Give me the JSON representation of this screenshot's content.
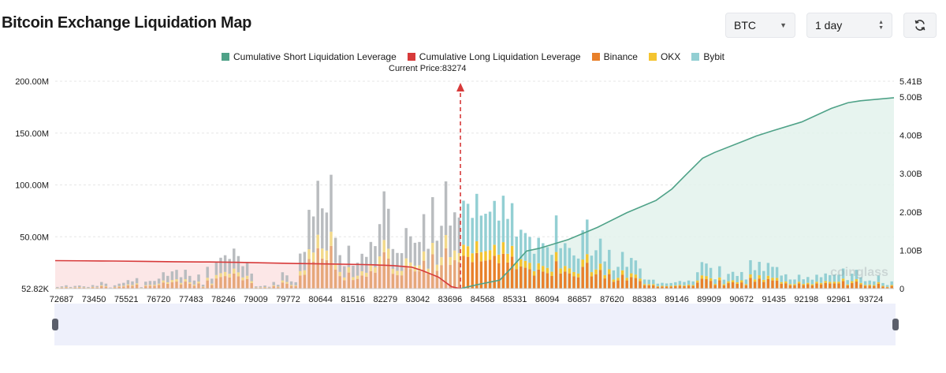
{
  "page": {
    "title": "Bitcoin Exchange Liquidation Map"
  },
  "controls": {
    "coin": "BTC",
    "range": "1 day",
    "refresh_icon": "refresh-icon",
    "coin_caret_icon": "caret-down-icon",
    "range_stepper_icon": "up-down-icon"
  },
  "legend": [
    {
      "label": "Cumulative Short Liquidation Leverage",
      "color": "#4fa288"
    },
    {
      "label": "Cumulative Long Liquidation Leverage",
      "color": "#d73a3a"
    },
    {
      "label": "Binance",
      "color": "#e8802a"
    },
    {
      "label": "OKX",
      "color": "#f4c430"
    },
    {
      "label": "Bybit",
      "color": "#93cfd3"
    }
  ],
  "current_price_label": "Current Price:83274",
  "watermark": "coinglass",
  "chart_data": {
    "type": "bar",
    "title": "",
    "xlabel": "",
    "ylabel": "",
    "x_tick_labels": [
      "72687",
      "73450",
      "75521",
      "76720",
      "77483",
      "78246",
      "79009",
      "79772",
      "80644",
      "81516",
      "82279",
      "83042",
      "83696",
      "84568",
      "85331",
      "86094",
      "86857",
      "87620",
      "88383",
      "89146",
      "89909",
      "90672",
      "91435",
      "92198",
      "92961",
      "93724"
    ],
    "x_range": [
      72687,
      94600
    ],
    "current_price": 83274,
    "left_axis": {
      "ticks": [
        "52.82K",
        "50.00M",
        "100.00M",
        "150.00M",
        "200.00M"
      ],
      "range": [
        0,
        200000000
      ]
    },
    "right_axis": {
      "ticks": [
        "0",
        "1.00B",
        "2.00B",
        "3.00B",
        "4.00B",
        "5.00B",
        "5.41B"
      ],
      "range": [
        0,
        5410000000
      ]
    },
    "series": [
      {
        "name": "Binance",
        "color": "#e8802a",
        "stacked": true,
        "values_millions": [
          0.6,
          0.8,
          1.2,
          0.6,
          1.0,
          1.1,
          0.8,
          0.6,
          1.3,
          1.0,
          2.4,
          1.8,
          0.4,
          1.2,
          1.8,
          2.1,
          3.1,
          2.6,
          3.8,
          0.5,
          2.5,
          2.8,
          2.8,
          3.6,
          5.9,
          4.6,
          6.2,
          6.8,
          4.1,
          6.8,
          4.6,
          2.9,
          5.1,
          1.4,
          7.9,
          3.6,
          9.8,
          11.2,
          12.1,
          10.7,
          14.5,
          11.8,
          8.1,
          9.3,
          5.4,
          0.8,
          0.9,
          1.1,
          0.7,
          2.4,
          1.4,
          5.9,
          4.8,
          2.6,
          2.3,
          12.7,
          13.3,
          28.5,
          26.1,
          39.0,
          29.0,
          27.5,
          41.2,
          18.4,
          12.1,
          8.1,
          15.5,
          8.3,
          9.4,
          12.6,
          11.5,
          16.9,
          15.4,
          23.3,
          35.2,
          28.9,
          14.3,
          12.9,
          12.8,
          21.9,
          18.9,
          16.6,
          16.9,
          26.9,
          14.4,
          33.1,
          17.3,
          22.7,
          38.8,
          22.8,
          27.6,
          25.7,
          31.8,
          30.7,
          25.6,
          34.3,
          26.4,
          27.1,
          27.8,
          31.7,
          24.6,
          33.6,
          25.2,
          30.9,
          18.8,
          21.3,
          20.1,
          18.7,
          12.6,
          18.4,
          16.4,
          15.0,
          12.2,
          26.5,
          14.6,
          16.4,
          14.7,
          12.0,
          10.9,
          21.1,
          25.0,
          11.9,
          13.9,
          18.1,
          9.8,
          14.0,
          6.6,
          7.9,
          13.3,
          7.9,
          11.1,
          10.2,
          7.3,
          3.3,
          3.2,
          3.2,
          1.8,
          2.1,
          1.9,
          2.0,
          2.3,
          2.8,
          2.4,
          2.9,
          2.6,
          5.9,
          9.6,
          9.1,
          7.5,
          3.4,
          8.1,
          3.2,
          5.3,
          6.1,
          4.6,
          6.0,
          3.3,
          10.3,
          6.7,
          9.7,
          6.4,
          9.3,
          7.9,
          7.8,
          4.7,
          5.2,
          3.3,
          3.3,
          5.0,
          3.4,
          4.2,
          3.2,
          5.0,
          4.1,
          5.5,
          4.9,
          5.0,
          5.0,
          7.3,
          3.1,
          5.4,
          6.8,
          4.1,
          2.7,
          2.9,
          2.6,
          4.7,
          2.0,
          1.3,
          2.6
        ]
      },
      {
        "name": "OKX",
        "color": "#f4c430",
        "stacked": true,
        "values_millions": [
          0.2,
          0.3,
          0.4,
          0.2,
          0.3,
          0.4,
          0.3,
          0.2,
          0.4,
          0.3,
          0.8,
          0.6,
          0.1,
          0.4,
          0.6,
          0.7,
          1.0,
          0.9,
          1.3,
          0.2,
          0.8,
          0.9,
          0.9,
          1.2,
          2.0,
          1.5,
          2.1,
          2.3,
          1.4,
          2.3,
          1.5,
          1.0,
          1.7,
          0.5,
          2.6,
          1.2,
          3.3,
          3.7,
          4.0,
          3.6,
          4.8,
          3.9,
          2.7,
          3.1,
          1.8,
          0.3,
          0.3,
          0.4,
          0.2,
          0.8,
          0.5,
          2.0,
          1.6,
          0.9,
          0.8,
          4.2,
          4.4,
          9.5,
          8.7,
          13.0,
          9.7,
          9.2,
          13.7,
          6.1,
          4.0,
          2.7,
          5.2,
          2.8,
          3.1,
          4.2,
          3.8,
          5.6,
          5.1,
          7.8,
          11.7,
          9.6,
          4.8,
          4.3,
          4.3,
          7.3,
          6.3,
          5.5,
          5.6,
          9.0,
          4.8,
          11.0,
          5.8,
          7.6,
          12.9,
          7.6,
          9.2,
          8.6,
          10.6,
          10.2,
          8.5,
          11.4,
          8.8,
          9.0,
          9.3,
          10.6,
          8.2,
          11.2,
          8.4,
          10.3,
          6.3,
          7.1,
          6.7,
          6.2,
          4.2,
          6.1,
          5.5,
          5.0,
          4.1,
          8.8,
          4.9,
          5.5,
          4.9,
          4.0,
          3.6,
          7.0,
          8.3,
          4.0,
          4.6,
          6.0,
          3.3,
          4.7,
          2.2,
          2.6,
          4.4,
          2.6,
          3.7,
          3.4,
          2.4,
          1.1,
          1.1,
          1.1,
          0.6,
          0.7,
          0.6,
          0.7,
          0.8,
          0.9,
          0.8,
          1.0,
          0.9,
          2.0,
          3.2,
          3.0,
          2.5,
          1.1,
          2.7,
          1.1,
          1.8,
          2.0,
          1.5,
          2.0,
          1.1,
          3.4,
          2.2,
          3.2,
          2.1,
          3.1,
          2.6,
          2.6,
          1.6,
          1.7,
          1.1,
          1.1,
          1.7,
          1.1,
          1.4,
          1.1,
          1.7,
          1.4,
          1.8,
          1.6,
          1.7,
          1.7,
          2.4,
          1.0,
          1.8,
          2.3,
          1.4,
          0.9,
          1.0,
          0.9,
          1.6,
          0.7,
          0.4,
          0.9
        ]
      },
      {
        "name": "Bybit",
        "color": "#93cfd3",
        "stacked": true,
        "values_millions": [
          0.8,
          1.1,
          1.6,
          0.8,
          1.3,
          1.5,
          1.1,
          0.8,
          1.7,
          1.3,
          3.2,
          2.4,
          0.6,
          1.6,
          2.4,
          2.8,
          4.1,
          3.5,
          5.0,
          0.7,
          3.4,
          3.7,
          3.7,
          4.8,
          7.9,
          6.2,
          8.3,
          9.0,
          5.5,
          9.1,
          6.2,
          3.9,
          6.8,
          1.9,
          10.5,
          4.8,
          13.0,
          14.9,
          16.1,
          14.3,
          19.3,
          15.7,
          10.8,
          12.4,
          7.3,
          1.1,
          1.2,
          1.5,
          0.9,
          3.2,
          1.8,
          7.9,
          6.4,
          3.5,
          3.1,
          16.9,
          17.7,
          38.0,
          34.8,
          52.0,
          38.7,
          36.7,
          54.9,
          24.5,
          16.2,
          10.8,
          20.7,
          11.1,
          12.5,
          16.8,
          15.3,
          22.5,
          20.5,
          31.1,
          46.9,
          38.5,
          19.1,
          17.2,
          17.1,
          29.2,
          25.2,
          22.1,
          22.5,
          35.9,
          19.2,
          44.1,
          23.1,
          30.3,
          51.7,
          30.4,
          36.8,
          34.3,
          42.4,
          40.9,
          34.1,
          45.7,
          35.2,
          36.1,
          37.1,
          42.3,
          32.8,
          44.8,
          33.6,
          41.2,
          25.1,
          28.4,
          26.8,
          24.9,
          16.8,
          24.5,
          21.9,
          20.0,
          16.3,
          35.3,
          19.5,
          21.9,
          19.6,
          16.0,
          14.5,
          28.1,
          33.3,
          15.9,
          18.5,
          24.1,
          13.1,
          18.7,
          8.8,
          10.5,
          17.7,
          10.5,
          14.8,
          13.6,
          9.7,
          4.4,
          4.3,
          4.3,
          2.4,
          2.8,
          2.5,
          2.7,
          3.1,
          3.7,
          3.2,
          3.9,
          3.5,
          7.9,
          12.8,
          12.1,
          10.0,
          4.5,
          10.8,
          4.3,
          7.1,
          8.1,
          6.1,
          8.0,
          4.4,
          13.7,
          8.9,
          12.9,
          8.5,
          12.4,
          10.5,
          10.4,
          6.3,
          6.9,
          4.4,
          4.4,
          6.7,
          4.5,
          5.6,
          4.3,
          6.7,
          5.5,
          7.3,
          6.5,
          6.7,
          6.7,
          9.7,
          4.1,
          7.2,
          9.1,
          5.5,
          3.6,
          3.9,
          3.5,
          6.3,
          2.7,
          1.7,
          3.5
        ]
      },
      {
        "name": "Cumulative Long Liquidation Leverage",
        "color": "#d73a3a",
        "line": true,
        "points": [
          [
            72687,
            0.73
          ],
          [
            73450,
            0.725
          ],
          [
            74200,
            0.72
          ],
          [
            75000,
            0.71
          ],
          [
            75800,
            0.7
          ],
          [
            76720,
            0.695
          ],
          [
            77483,
            0.685
          ],
          [
            78246,
            0.67
          ],
          [
            79009,
            0.655
          ],
          [
            79772,
            0.645
          ],
          [
            80644,
            0.63
          ],
          [
            81000,
            0.62
          ],
          [
            81516,
            0.6
          ],
          [
            82000,
            0.56
          ],
          [
            82279,
            0.47
          ],
          [
            82700,
            0.3
          ],
          [
            83042,
            0.05
          ],
          [
            83274,
            0.0
          ]
        ]
      },
      {
        "name": "Cumulative Short Liquidation Leverage",
        "color": "#4fa288",
        "line": true,
        "points": [
          [
            83274,
            0.0
          ],
          [
            83696,
            0.1
          ],
          [
            84300,
            0.22
          ],
          [
            84568,
            0.5
          ],
          [
            85000,
            0.98
          ],
          [
            85331,
            1.05
          ],
          [
            86094,
            1.28
          ],
          [
            86857,
            1.6
          ],
          [
            87620,
            1.98
          ],
          [
            88383,
            2.3
          ],
          [
            88800,
            2.6
          ],
          [
            89146,
            2.95
          ],
          [
            89600,
            3.4
          ],
          [
            89909,
            3.55
          ],
          [
            90672,
            3.85
          ],
          [
            91000,
            3.98
          ],
          [
            91435,
            4.12
          ],
          [
            92198,
            4.35
          ],
          [
            92961,
            4.7
          ],
          [
            93400,
            4.85
          ],
          [
            93724,
            4.9
          ],
          [
            94600,
            4.98
          ]
        ]
      }
    ]
  }
}
